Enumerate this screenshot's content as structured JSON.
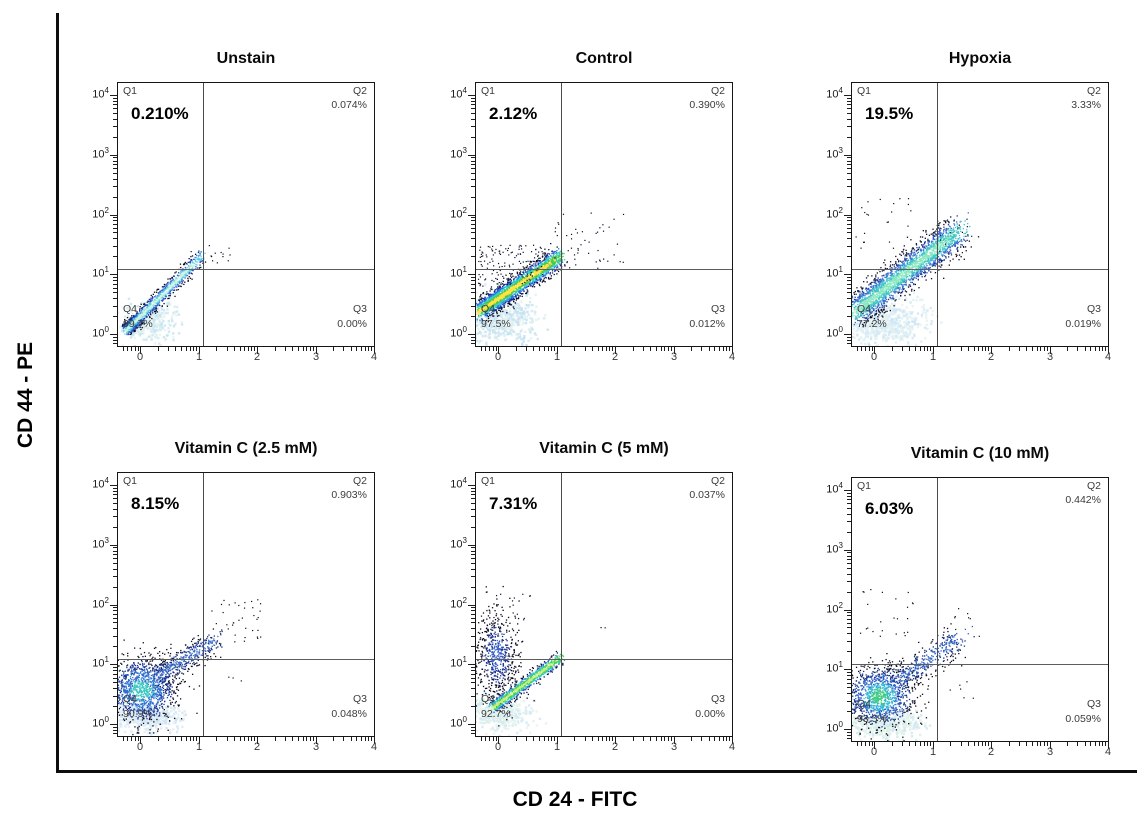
{
  "figure": {
    "y_axis_label": "CD 44 - PE",
    "x_axis_label": "CD 24 - FITC"
  },
  "chart_data": [
    {
      "type": "scatter",
      "title": "Unstain",
      "xlabel": "CD 24 - FITC",
      "ylabel": "CD 44 - PE",
      "x_scale": "log10-decades",
      "y_scale": "log10-decades",
      "xlim": [
        -0.38,
        4
      ],
      "ylim": [
        -0.2,
        4.2
      ],
      "x_ticks": [
        "0",
        "1",
        "2",
        "3",
        "4"
      ],
      "y_tick_base": "10",
      "y_tick_exponents": [
        "0",
        "1",
        "2",
        "3",
        "4"
      ],
      "gate": {
        "x": 1.08,
        "y": 1.08
      },
      "quadrants": [
        {
          "name": "Q1",
          "value": "0.210%"
        },
        {
          "name": "Q2",
          "value": "0.074%"
        },
        {
          "name": "Q3",
          "value": "0.00%"
        },
        {
          "name": "Q4",
          "value": "99.7%"
        }
      ],
      "clusters": [
        {
          "kind": "wash",
          "center": [
            0.12,
            0.22
          ],
          "sx": 0.22,
          "sy": 0.16,
          "n": 380,
          "size": 2.4,
          "alpha": 0.85,
          "palette": [
            "#e7f5ec",
            "#d2ebf4",
            "#c5e4f2"
          ]
        },
        {
          "kind": "streak",
          "from": [
            -0.22,
            0.1
          ],
          "to": [
            1.03,
            1.3
          ],
          "sigma": 0.055,
          "n": 1150,
          "bias": 1.7,
          "size": 1.3,
          "palette": [
            "#c9f3da",
            "#5bcbe8",
            "#2c62d4",
            "#13308f",
            "#090920"
          ]
        },
        {
          "kind": "sparse",
          "x": [
            0.85,
            1.62
          ],
          "y": [
            1.2,
            1.52
          ],
          "n": 14,
          "size": 1.2,
          "color": "#0c0c26"
        }
      ]
    },
    {
      "type": "scatter",
      "title": "Control",
      "xlabel": "CD 24 - FITC",
      "ylabel": "CD 44 - PE",
      "x_scale": "log10-decades",
      "y_scale": "log10-decades",
      "xlim": [
        -0.38,
        4
      ],
      "ylim": [
        -0.2,
        4.2
      ],
      "x_ticks": [
        "0",
        "1",
        "2",
        "3",
        "4"
      ],
      "y_tick_base": "10",
      "y_tick_exponents": [
        "0",
        "1",
        "2",
        "3",
        "4"
      ],
      "gate": {
        "x": 1.08,
        "y": 1.08
      },
      "quadrants": [
        {
          "name": "Q1",
          "value": "2.12%"
        },
        {
          "name": "Q2",
          "value": "0.390%"
        },
        {
          "name": "Q3",
          "value": "0.012%"
        },
        {
          "name": "Q4",
          "value": "97.5%"
        }
      ],
      "clusters": [
        {
          "kind": "wash",
          "center": [
            0.02,
            0.28
          ],
          "sx": 0.3,
          "sy": 0.2,
          "n": 520,
          "size": 2.4,
          "alpha": 0.85,
          "palette": [
            "#e2f2ee",
            "#d0e8f4",
            "#c2e0f2"
          ]
        },
        {
          "kind": "streak",
          "from": [
            -0.28,
            0.42
          ],
          "to": [
            1.04,
            1.3
          ],
          "sigma": 0.085,
          "n": 2300,
          "bias": 1.25,
          "size": 1.3,
          "palette": [
            "#ffe23d",
            "#4fc648",
            "#2bd3cd",
            "#2b6de0",
            "#15298f",
            "#090920"
          ]
        },
        {
          "kind": "sparse",
          "x": [
            -0.35,
            0.8
          ],
          "y": [
            0.8,
            1.5
          ],
          "n": 150,
          "size": 1.2,
          "color": "#0d0d26"
        },
        {
          "kind": "sparse",
          "x": [
            0.95,
            2.15
          ],
          "y": [
            1.1,
            2.1
          ],
          "n": 48,
          "size": 1.2,
          "color": "#0d0d26"
        }
      ]
    },
    {
      "type": "scatter",
      "title": "Hypoxia",
      "xlabel": "CD 24 - FITC",
      "ylabel": "CD 44 - PE",
      "x_scale": "log10-decades",
      "y_scale": "log10-decades",
      "xlim": [
        -0.38,
        4
      ],
      "ylim": [
        -0.2,
        4.2
      ],
      "x_ticks": [
        "0",
        "1",
        "2",
        "3",
        "4"
      ],
      "y_tick_base": "10",
      "y_tick_exponents": [
        "0",
        "1",
        "2",
        "3",
        "4"
      ],
      "gate": {
        "x": 1.08,
        "y": 1.08
      },
      "quadrants": [
        {
          "name": "Q1",
          "value": "19.5%"
        },
        {
          "name": "Q2",
          "value": "3.33%"
        },
        {
          "name": "Q3",
          "value": "0.019%"
        },
        {
          "name": "Q4",
          "value": "77.2%"
        }
      ],
      "clusters": [
        {
          "kind": "wash",
          "center": [
            0.15,
            0.22
          ],
          "sx": 0.34,
          "sy": 0.2,
          "n": 650,
          "size": 2.4,
          "alpha": 0.85,
          "palette": [
            "#ddeef7",
            "#cfe6f5",
            "#e4f3ef"
          ]
        },
        {
          "kind": "streak",
          "from": [
            -0.28,
            0.42
          ],
          "to": [
            1.42,
            1.72
          ],
          "sigma": 0.13,
          "n": 2400,
          "bias": 1.1,
          "size": 1.3,
          "palette": [
            "#8ae8c0",
            "#41c4c8",
            "#3a74d2",
            "#1b3896",
            "#0a0a20"
          ]
        },
        {
          "kind": "sparse",
          "x": [
            -0.35,
            0.9
          ],
          "y": [
            1.35,
            2.3
          ],
          "n": 26,
          "size": 1.2,
          "color": "#0c0c24"
        },
        {
          "kind": "sparse",
          "x": [
            1.1,
            1.62
          ],
          "y": [
            1.25,
            1.95
          ],
          "n": 22,
          "size": 1.2,
          "color": "#0c0c24"
        }
      ]
    },
    {
      "type": "scatter",
      "title": "Vitamin C (2.5 mM)",
      "xlabel": "CD 24 - FITC",
      "ylabel": "CD 44 - PE",
      "x_scale": "log10-decades",
      "y_scale": "log10-decades",
      "xlim": [
        -0.38,
        4
      ],
      "ylim": [
        -0.2,
        4.2
      ],
      "x_ticks": [
        "0",
        "1",
        "2",
        "3",
        "4"
      ],
      "y_tick_base": "10",
      "y_tick_exponents": [
        "0",
        "1",
        "2",
        "3",
        "4"
      ],
      "gate": {
        "x": 1.08,
        "y": 1.08
      },
      "quadrants": [
        {
          "name": "Q1",
          "value": "8.15%"
        },
        {
          "name": "Q2",
          "value": "0.903%"
        },
        {
          "name": "Q3",
          "value": "0.048%"
        },
        {
          "name": "Q4",
          "value": "90.9%"
        }
      ],
      "clusters": [
        {
          "kind": "wash",
          "center": [
            0.1,
            0.13
          ],
          "sx": 0.27,
          "sy": 0.12,
          "n": 420,
          "size": 2.4,
          "alpha": 0.85,
          "palette": [
            "#dcebf6",
            "#cfe2f2",
            "#e2eef8"
          ]
        },
        {
          "kind": "blob",
          "center": [
            0.02,
            0.58
          ],
          "sx": 0.3,
          "sy": 0.27,
          "n": 1250,
          "size": 1.3,
          "palette": [
            "#3ec9c2",
            "#2f6fd0",
            "#1a3694",
            "#0a0a20"
          ]
        },
        {
          "kind": "streak",
          "from": [
            0.3,
            0.82
          ],
          "to": [
            1.28,
            1.42
          ],
          "sigma": 0.1,
          "n": 430,
          "bias": 1.15,
          "size": 1.3,
          "palette": [
            "#3a69c8",
            "#142c7c",
            "#0a0a1e"
          ]
        },
        {
          "kind": "sparse",
          "x": [
            1.2,
            2.08
          ],
          "y": [
            1.35,
            2.12
          ],
          "n": 40,
          "size": 1.2,
          "color": "#0b0b22"
        },
        {
          "kind": "sparse",
          "x": [
            1.5,
            1.75
          ],
          "y": [
            0.68,
            0.8
          ],
          "n": 3,
          "size": 1.2,
          "color": "#0b0b22"
        }
      ]
    },
    {
      "type": "scatter",
      "title": "Vitamin C (5 mM)",
      "xlabel": "CD 24 - FITC",
      "ylabel": "CD 44 - PE",
      "x_scale": "log10-decades",
      "y_scale": "log10-decades",
      "xlim": [
        -0.38,
        4
      ],
      "ylim": [
        -0.2,
        4.2
      ],
      "x_ticks": [
        "0",
        "1",
        "2",
        "3",
        "4"
      ],
      "y_tick_base": "10",
      "y_tick_exponents": [
        "0",
        "1",
        "2",
        "3",
        "4"
      ],
      "gate": {
        "x": 1.08,
        "y": 1.08
      },
      "quadrants": [
        {
          "name": "Q1",
          "value": "7.31%"
        },
        {
          "name": "Q2",
          "value": "0.037%"
        },
        {
          "name": "Q3",
          "value": "0.00%"
        },
        {
          "name": "Q4",
          "value": "92.7%"
        }
      ],
      "clusters": [
        {
          "kind": "wash",
          "center": [
            0.0,
            0.2
          ],
          "sx": 0.28,
          "sy": 0.15,
          "n": 430,
          "size": 2.4,
          "alpha": 0.85,
          "palette": [
            "#def1ea",
            "#d2e9f3",
            "#e6f5ee"
          ]
        },
        {
          "kind": "blob",
          "center": [
            -0.03,
            1.15
          ],
          "sx": 0.19,
          "sy": 0.4,
          "n": 620,
          "size": 1.3,
          "palette": [
            "#2f5ac8",
            "#1b2f8c",
            "#0a0a1e",
            "#0a0a1e"
          ]
        },
        {
          "kind": "streak",
          "from": [
            -0.08,
            0.3
          ],
          "to": [
            1.05,
            1.12
          ],
          "sigma": 0.05,
          "n": 950,
          "bias": 1.2,
          "size": 1.3,
          "palette": [
            "#c4f07e",
            "#44d056",
            "#2fc6da",
            "#2a5ecc",
            "#0d123c"
          ]
        },
        {
          "kind": "sparse",
          "x": [
            -0.3,
            0.55
          ],
          "y": [
            1.75,
            2.3
          ],
          "n": 16,
          "size": 1.2,
          "color": "#0b0b22"
        },
        {
          "kind": "sparse",
          "x": [
            1.7,
            1.82
          ],
          "y": [
            1.6,
            1.7
          ],
          "n": 2,
          "size": 1.2,
          "color": "#0b0b22"
        }
      ]
    },
    {
      "type": "scatter",
      "title": "Vitamin C (10 mM)",
      "xlabel": "CD 24 - FITC",
      "ylabel": "CD 44 - PE",
      "x_scale": "log10-decades",
      "y_scale": "log10-decades",
      "xlim": [
        -0.38,
        4
      ],
      "ylim": [
        -0.2,
        4.2
      ],
      "x_ticks": [
        "0",
        "1",
        "2",
        "3",
        "4"
      ],
      "y_tick_base": "10",
      "y_tick_exponents": [
        "0",
        "1",
        "2",
        "3",
        "4"
      ],
      "gate": {
        "x": 1.08,
        "y": 1.08
      },
      "quadrants": [
        {
          "name": "Q1",
          "value": "6.03%"
        },
        {
          "name": "Q2",
          "value": "0.442%"
        },
        {
          "name": "Q3",
          "value": "0.059%"
        },
        {
          "name": "Q4",
          "value": "93.5%"
        }
      ],
      "clusters": [
        {
          "kind": "wash",
          "center": [
            0.15,
            0.1
          ],
          "sx": 0.3,
          "sy": 0.11,
          "n": 380,
          "size": 2.4,
          "alpha": 0.85,
          "palette": [
            "#d9efe6",
            "#cfe8f2",
            "#e5f5ec"
          ]
        },
        {
          "kind": "blob",
          "center": [
            0.08,
            0.55
          ],
          "sx": 0.29,
          "sy": 0.25,
          "n": 1200,
          "size": 1.3,
          "palette": [
            "#3ecb80",
            "#36b6d6",
            "#2a5ac6",
            "#15307c",
            "#0a0a1e"
          ]
        },
        {
          "kind": "streak",
          "from": [
            0.42,
            0.82
          ],
          "to": [
            1.45,
            1.55
          ],
          "sigma": 0.12,
          "n": 380,
          "bias": 1.1,
          "size": 1.3,
          "palette": [
            "#2f60c6",
            "#142c78",
            "#0a0a1e"
          ]
        },
        {
          "kind": "sparse",
          "x": [
            -0.3,
            0.7
          ],
          "y": [
            1.55,
            2.35
          ],
          "n": 24,
          "size": 1.2,
          "color": "#0b0b22"
        },
        {
          "kind": "sparse",
          "x": [
            1.35,
            1.8
          ],
          "y": [
            1.45,
            2.05
          ],
          "n": 8,
          "size": 1.2,
          "color": "#0b0b22"
        },
        {
          "kind": "sparse",
          "x": [
            1.15,
            1.7
          ],
          "y": [
            0.5,
            0.9
          ],
          "n": 6,
          "size": 1.2,
          "color": "#0b0b22"
        }
      ]
    }
  ]
}
